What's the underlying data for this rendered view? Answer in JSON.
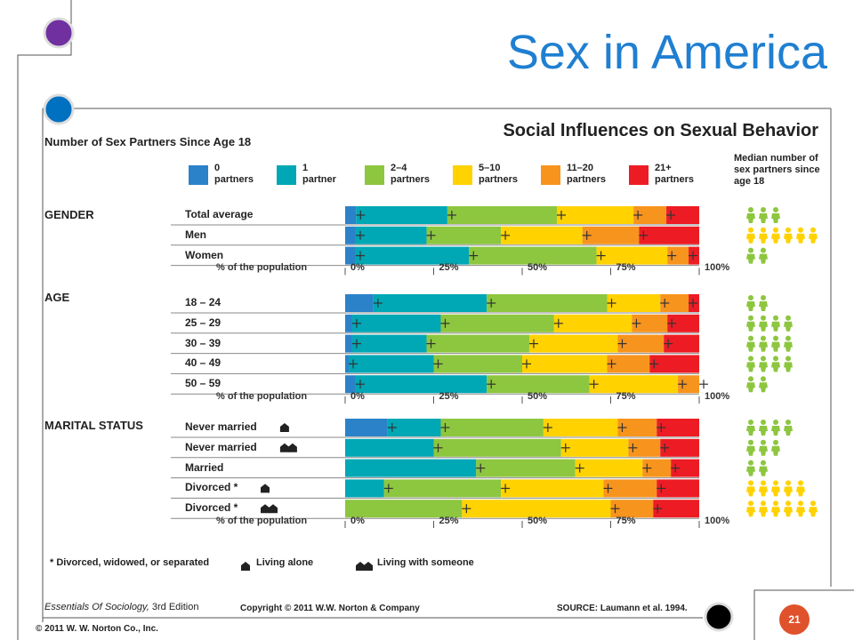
{
  "slide": {
    "title": "Sex in America",
    "page_number": "21",
    "copyright_publisher": "© 2011 W. W. Norton Co., Inc.",
    "book_title": "Essentials Of Sociology,",
    "book_edition": "3rd Edition",
    "book_copyright": "Copyright © 2011 W.W. Norton & Company",
    "source": "SOURCE: Laumann et al. 1994."
  },
  "footnotes": {
    "divorced_note": "* Divorced, widowed, or separated",
    "living_alone": "Living alone",
    "living_with": "Living with someone"
  },
  "median_label": "Median number of sex partners since age 18",
  "colors": {
    "title": "#1f7fd1",
    "cat0": "#2b82c9",
    "cat1": "#00a7b5",
    "cat2": "#8dc63f",
    "cat3": "#ffd200",
    "cat4": "#f7941d",
    "cat5": "#ed1c24",
    "figure": "#8dc63f",
    "figure_alt": "#ffd200"
  },
  "chart_data": {
    "type": "bar",
    "stacked": true,
    "orientation": "horizontal",
    "title": "Social Influences on Sexual Behavior",
    "subtitle": "Number of Sex Partners Since Age 18",
    "xlabel": "% of the population",
    "xlim": [
      0,
      100
    ],
    "x_ticks": [
      "0%",
      "25%",
      "50%",
      "75%",
      "100%"
    ],
    "legend": [
      {
        "line1": "0",
        "line2": "partners"
      },
      {
        "line1": "1",
        "line2": "partner"
      },
      {
        "line1": "2–4",
        "line2": "partners"
      },
      {
        "line1": "5–10",
        "line2": "partners"
      },
      {
        "line1": "11–20",
        "line2": "partners"
      },
      {
        "line1": "21+",
        "line2": "partners"
      }
    ],
    "groups": [
      {
        "label": "GENDER",
        "rows": [
          {
            "label": "Total average",
            "values": [
              3,
              25,
              30,
              21,
              9,
              9
            ],
            "median": 3,
            "median_highlight": 0
          },
          {
            "label": "Men",
            "values": [
              3,
              20,
              21,
              23,
              16,
              17
            ],
            "median": 6,
            "median_highlight": 6
          },
          {
            "label": "Women",
            "values": [
              3,
              32,
              36,
              20,
              6,
              3
            ],
            "median": 2,
            "median_highlight": 0
          }
        ]
      },
      {
        "label": "AGE",
        "rows": [
          {
            "label": "18 – 24",
            "values": [
              8,
              32,
              34,
              15,
              8,
              3
            ],
            "median": 2,
            "median_highlight": 0
          },
          {
            "label": "25 – 29",
            "values": [
              2,
              25,
              32,
              22,
              10,
              9
            ],
            "median": 4,
            "median_highlight": 0
          },
          {
            "label": "30 – 39",
            "values": [
              2,
              21,
              29,
              25,
              13,
              10
            ],
            "median": 4,
            "median_highlight": 0
          },
          {
            "label": "40 – 49",
            "values": [
              1,
              24,
              25,
              24,
              12,
              14
            ],
            "median": 4,
            "median_highlight": 0
          },
          {
            "label": "50 – 59",
            "values": [
              3,
              37,
              29,
              25,
              6,
              0
            ],
            "median": 2,
            "median_highlight": 0
          }
        ]
      },
      {
        "label": "MARITAL STATUS",
        "rows": [
          {
            "label": "Never married",
            "label_icon": "house-single-icon",
            "values": [
              12,
              15,
              29,
              21,
              11,
              12
            ],
            "median": 4,
            "median_highlight": 0
          },
          {
            "label": "Never married",
            "label_icon": "house-double-icon",
            "values": [
              0,
              25,
              36,
              19,
              9,
              11
            ],
            "median": 3,
            "median_highlight": 0
          },
          {
            "label": "Married",
            "values": [
              0,
              37,
              28,
              19,
              8,
              8
            ],
            "median": 2,
            "median_highlight": 0
          },
          {
            "label": "Divorced *",
            "label_icon": "house-single-icon",
            "values": [
              0,
              11,
              33,
              29,
              15,
              12
            ],
            "median": 5,
            "median_highlight": 5
          },
          {
            "label": "Divorced *",
            "label_icon": "house-double-icon",
            "values": [
              0,
              0,
              33,
              42,
              12,
              13
            ],
            "median": 6,
            "median_highlight": 6
          }
        ]
      }
    ]
  }
}
